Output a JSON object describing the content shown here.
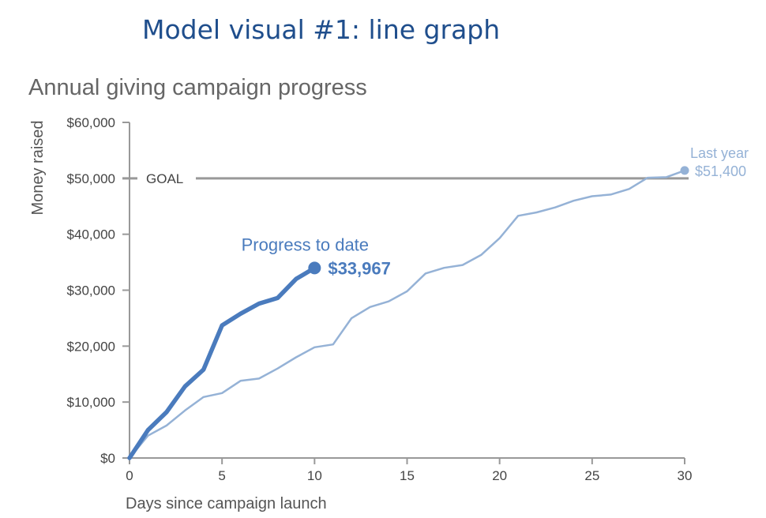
{
  "page": {
    "heading": "Model visual #1: line graph"
  },
  "chart_data": {
    "type": "line",
    "title": "Annual giving campaign progress",
    "xlabel": "Days since campaign launch",
    "ylabel": "Money raised",
    "xlim": [
      0,
      30
    ],
    "ylim": [
      0,
      60000
    ],
    "x_ticks": [
      "0",
      "5",
      "10",
      "15",
      "20",
      "25",
      "30"
    ],
    "x_tick_values": [
      0,
      5,
      10,
      15,
      20,
      25,
      30
    ],
    "y_ticks": [
      "$0",
      "$10,000",
      "$20,000",
      "$30,000",
      "$40,000",
      "$50,000",
      "$60,000"
    ],
    "y_tick_values": [
      0,
      10000,
      20000,
      30000,
      40000,
      50000,
      60000
    ],
    "grid": false,
    "goal": {
      "label": "GOAL",
      "value": 50000,
      "color": "#999999"
    },
    "series": [
      {
        "name": "Last year",
        "color": "#95b2d6",
        "x": [
          0,
          1,
          2,
          3,
          4,
          5,
          6,
          7,
          8,
          9,
          10,
          11,
          12,
          13,
          14,
          15,
          16,
          17,
          18,
          19,
          20,
          21,
          22,
          23,
          24,
          25,
          26,
          27,
          28,
          29,
          30
        ],
        "values": [
          0,
          4000,
          5800,
          8500,
          10900,
          11600,
          13800,
          14200,
          16000,
          18000,
          19800,
          20300,
          25000,
          27000,
          28000,
          29800,
          33000,
          34000,
          34500,
          36300,
          39300,
          43300,
          43900,
          44800,
          46000,
          46800,
          47100,
          48100,
          50100,
          50200,
          51400
        ],
        "end_label": "$51,400"
      },
      {
        "name": "Progress to date",
        "color": "#4a7bbd",
        "x": [
          0,
          1,
          2,
          3,
          4,
          5,
          6,
          7,
          8,
          9,
          10
        ],
        "values": [
          0,
          5000,
          8200,
          12800,
          15800,
          23700,
          25800,
          27600,
          28600,
          32000,
          33967
        ],
        "end_label": "$33,967"
      }
    ]
  }
}
